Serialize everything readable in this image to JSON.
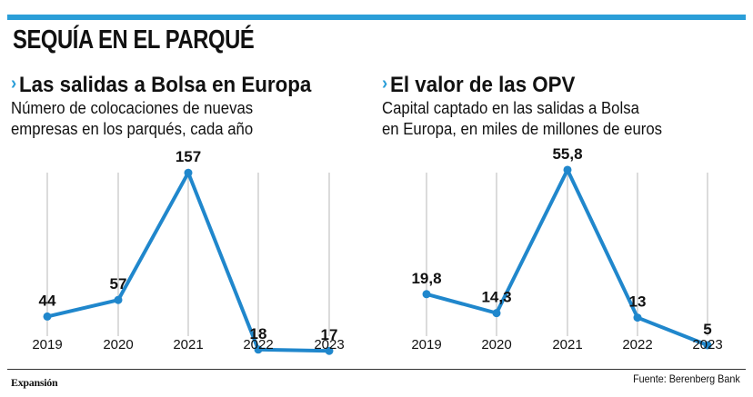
{
  "header": {
    "title": "SEQUÍA EN EL PARQUÉ"
  },
  "footer": {
    "brand": "Expansión",
    "source": "Fuente: Berenberg Bank"
  },
  "style": {
    "accent": "#2a9ed8",
    "line": "#2087cc",
    "grid": "#c8c8c8",
    "text": "#111111"
  },
  "chart_data": [
    {
      "type": "line",
      "title": "Las salidas a Bolsa en Europa",
      "subtitle_lines": [
        "Número de colocaciones de nuevas",
        "empresas en los parqués, cada año"
      ],
      "categories": [
        "2019",
        "2020",
        "2021",
        "2022",
        "2023"
      ],
      "values": [
        44,
        57,
        157,
        18,
        17
      ],
      "labels": [
        "44",
        "57",
        "157",
        "18",
        "17"
      ],
      "ylim": [
        0,
        170
      ],
      "grid": "vertical"
    },
    {
      "type": "line",
      "title": "El valor de las OPV",
      "subtitle_lines": [
        "Capital captado en las salidas a Bolsa",
        "en Europa, en miles de millones de euros"
      ],
      "categories": [
        "2019",
        "2020",
        "2021",
        "2022",
        "2023"
      ],
      "values": [
        19.8,
        14.3,
        55.8,
        13,
        5
      ],
      "labels": [
        "19,8",
        "14,3",
        "55,8",
        "13",
        "5"
      ],
      "ylim": [
        0,
        60
      ],
      "grid": "vertical"
    }
  ]
}
